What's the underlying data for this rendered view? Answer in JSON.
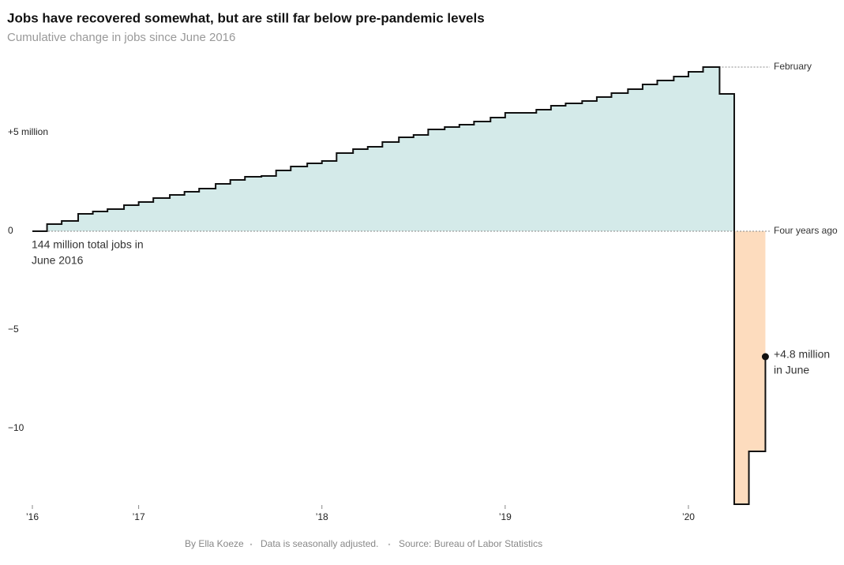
{
  "chart_data": {
    "type": "step-area",
    "title": "Jobs have recovered somewhat, but are still far below pre-pandemic levels",
    "subtitle": "Cumulative change in jobs since June 2016",
    "x": [
      2016.42,
      2016.5,
      2016.58,
      2016.67,
      2016.75,
      2016.83,
      2016.92,
      2017,
      2017.08,
      2017.17,
      2017.25,
      2017.33,
      2017.42,
      2017.5,
      2017.58,
      2017.67,
      2017.75,
      2017.83,
      2017.92,
      2018,
      2018.08,
      2018.17,
      2018.25,
      2018.33,
      2018.42,
      2018.5,
      2018.58,
      2018.67,
      2018.75,
      2018.83,
      2018.92,
      2019,
      2019.08,
      2019.17,
      2019.25,
      2019.33,
      2019.42,
      2019.5,
      2019.58,
      2019.67,
      2019.75,
      2019.83,
      2019.92,
      2020,
      2020.08,
      2020.17,
      2020.25,
      2020.33,
      2020.42
    ],
    "values": [
      0,
      0.36,
      0.52,
      0.88,
      1.0,
      1.12,
      1.32,
      1.48,
      1.68,
      1.84,
      2.0,
      2.16,
      2.4,
      2.6,
      2.76,
      2.8,
      3.08,
      3.28,
      3.44,
      3.56,
      3.96,
      4.16,
      4.28,
      4.52,
      4.76,
      4.88,
      5.16,
      5.28,
      5.4,
      5.56,
      5.76,
      6.0,
      6.0,
      6.16,
      6.36,
      6.48,
      6.6,
      6.8,
      7.0,
      7.2,
      7.44,
      7.64,
      7.84,
      8.08,
      8.32,
      6.96,
      -13.84,
      -11.16,
      -6.36
    ],
    "color": "#111111",
    "positive_color": "#d4eae9",
    "negative_color": "#fddcbe",
    "xlim": [
      2016.42,
      2020.5
    ],
    "ylim": [
      -13.84,
      8.32
    ],
    "xticks": [
      {
        "value": 2016.42,
        "label": "’16"
      },
      {
        "value": 2017,
        "label": "’17"
      },
      {
        "value": 2018,
        "label": "’18"
      },
      {
        "value": 2019,
        "label": "’19"
      },
      {
        "value": 2020,
        "label": "’20"
      }
    ],
    "yticks": [
      {
        "value": 5,
        "label": "+5 million"
      },
      0,
      {
        "value": -5,
        "label": "−5"
      },
      {
        "value": -10,
        "label": "−10"
      }
    ],
    "annotations": {
      "peak": "February",
      "baseline": "Four years ago",
      "start": [
        "144 million total jobs in",
        "June 2016"
      ],
      "last": [
        "+4.8 million",
        "in June"
      ]
    },
    "footer": [
      "By Ella Koeze",
      "Data is seasonally adjusted.",
      "Source: Bureau of Labor Statistics"
    ]
  }
}
